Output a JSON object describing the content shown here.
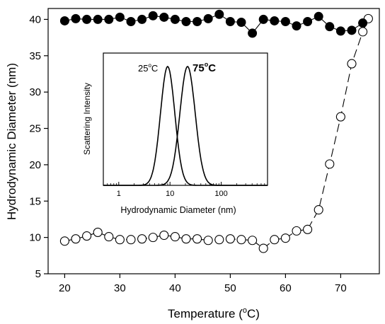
{
  "chart_data": [
    {
      "type": "scatter",
      "xlabel": "Temperature (",
      "xlabel_unit": "o",
      "xlabel_end": "C)",
      "ylabel": "Hydrodynamic Diameter (nm)",
      "xlim": [
        17,
        77
      ],
      "ylim": [
        5,
        41.5
      ],
      "xticks": [
        20,
        30,
        40,
        50,
        60,
        70
      ],
      "yticks": [
        5,
        10,
        15,
        20,
        25,
        30,
        35,
        40
      ],
      "series": [
        {
          "marker": "filled-circle",
          "line": "solid",
          "color": "#000000",
          "x": [
            20,
            22,
            24,
            26,
            28,
            30,
            32,
            34,
            36,
            38,
            40,
            42,
            44,
            46,
            48,
            50,
            52,
            54,
            56,
            58,
            60,
            62,
            64,
            66,
            68,
            70,
            72,
            74
          ],
          "y": [
            39.8,
            40.1,
            40.0,
            40.0,
            40.0,
            40.3,
            39.7,
            40.0,
            40.5,
            40.3,
            40.0,
            39.7,
            39.7,
            40.1,
            40.7,
            39.7,
            39.6,
            38.1,
            40.0,
            39.8,
            39.7,
            39.1,
            39.7,
            40.4,
            39.0,
            38.4,
            38.5,
            39.5
          ]
        },
        {
          "marker": "open-circle",
          "line": "dashed",
          "color": "#000000",
          "x": [
            20,
            22,
            24,
            26,
            28,
            30,
            32,
            34,
            36,
            38,
            40,
            42,
            44,
            46,
            48,
            50,
            52,
            54,
            56,
            58,
            60,
            62,
            64,
            66,
            68,
            70,
            72,
            74,
            75
          ],
          "y": [
            9.5,
            9.8,
            10.2,
            10.7,
            10.1,
            9.7,
            9.7,
            9.8,
            10.0,
            10.3,
            10.1,
            9.8,
            9.8,
            9.6,
            9.7,
            9.8,
            9.7,
            9.6,
            8.5,
            9.7,
            9.9,
            10.9,
            11.1,
            13.8,
            20.1,
            26.6,
            33.9,
            38.3,
            40.1
          ]
        }
      ]
    },
    {
      "type": "line",
      "xscale": "log",
      "xlabel": "Hydrodynamic Diameter (nm)",
      "ylabel": "Scattering Intensity",
      "xlim": [
        0.5,
        800
      ],
      "xticks": [
        1,
        10,
        100
      ],
      "annotations": [
        {
          "label_main": "25",
          "label_unit": "o",
          "label_end": "C",
          "peak_x": 9,
          "bold": false
        },
        {
          "label_main": "75",
          "label_unit": "o",
          "label_end": "C",
          "peak_x": 22,
          "bold": true
        }
      ],
      "series": [
        {
          "peak": 9,
          "sigma_log10": 0.14,
          "color": "#000000"
        },
        {
          "peak": 22,
          "sigma_log10": 0.15,
          "color": "#000000"
        }
      ]
    }
  ]
}
